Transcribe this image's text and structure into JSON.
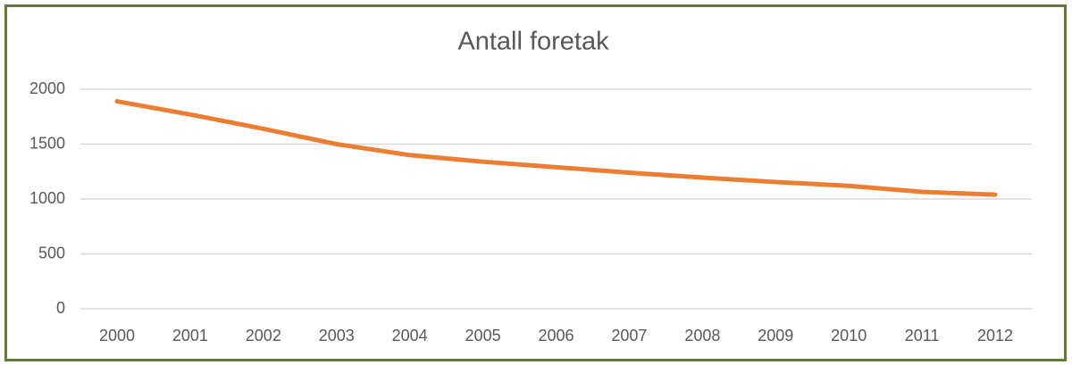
{
  "chart_data": {
    "type": "line",
    "title": "Antall foretak",
    "categories": [
      "2000",
      "2001",
      "2002",
      "2003",
      "2004",
      "2005",
      "2006",
      "2007",
      "2008",
      "2009",
      "2010",
      "2011",
      "2012"
    ],
    "series": [
      {
        "name": "Antall foretak",
        "color": "#ed7d31",
        "values": [
          1890,
          1770,
          1640,
          1500,
          1400,
          1340,
          1290,
          1240,
          1195,
          1155,
          1120,
          1065,
          1040
        ]
      }
    ],
    "ylim": [
      0,
      2000
    ],
    "yticks": [
      0,
      500,
      1000,
      1500,
      2000
    ],
    "grid": true
  }
}
